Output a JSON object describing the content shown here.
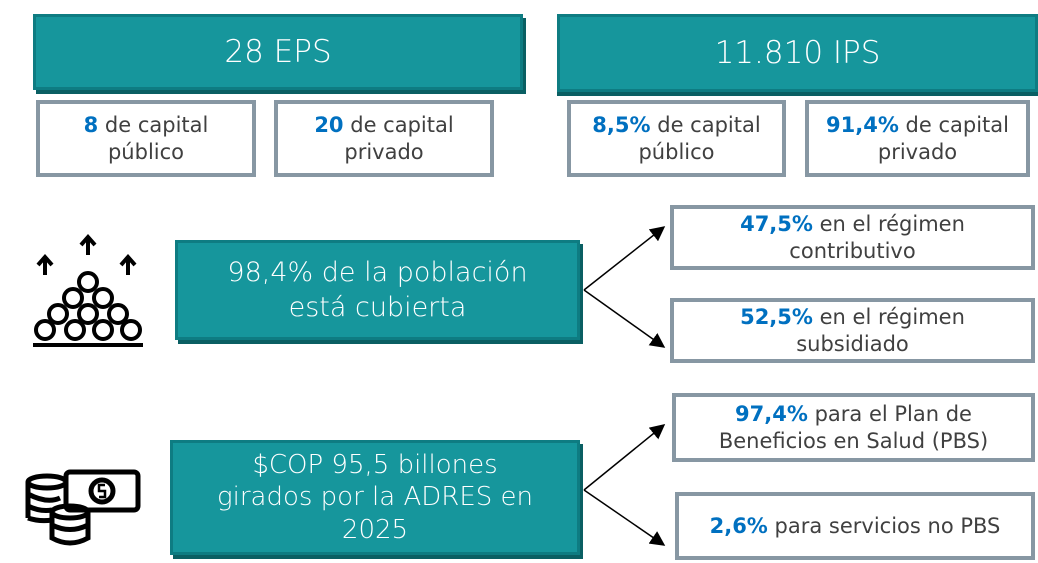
{
  "eps": {
    "title": "28 EPS",
    "public": {
      "highlight": "8",
      "text": "de capital público"
    },
    "private": {
      "highlight": "20",
      "text": "de capital privado"
    }
  },
  "ips": {
    "title": "11.810 IPS",
    "public": {
      "highlight": "8,5%",
      "text": "de capital público"
    },
    "private": {
      "highlight": "91,4%",
      "text": "de capital privado"
    }
  },
  "coverage": {
    "title": "98,4% de la población está cubierta",
    "contributive": {
      "highlight": "47,5%",
      "text": "en el régimen contributivo"
    },
    "subsidized": {
      "highlight": "52,5%",
      "text": "en el régimen subsidiado"
    }
  },
  "funds": {
    "title": "$COP 95,5 billones girados por la ADRES en 2025",
    "pbs": {
      "highlight": "97,4%",
      "text": "para el Plan de Beneficios en Salud (PBS)"
    },
    "non_pbs": {
      "highlight": "2,6%",
      "text": "para servicios no PBS"
    }
  }
}
